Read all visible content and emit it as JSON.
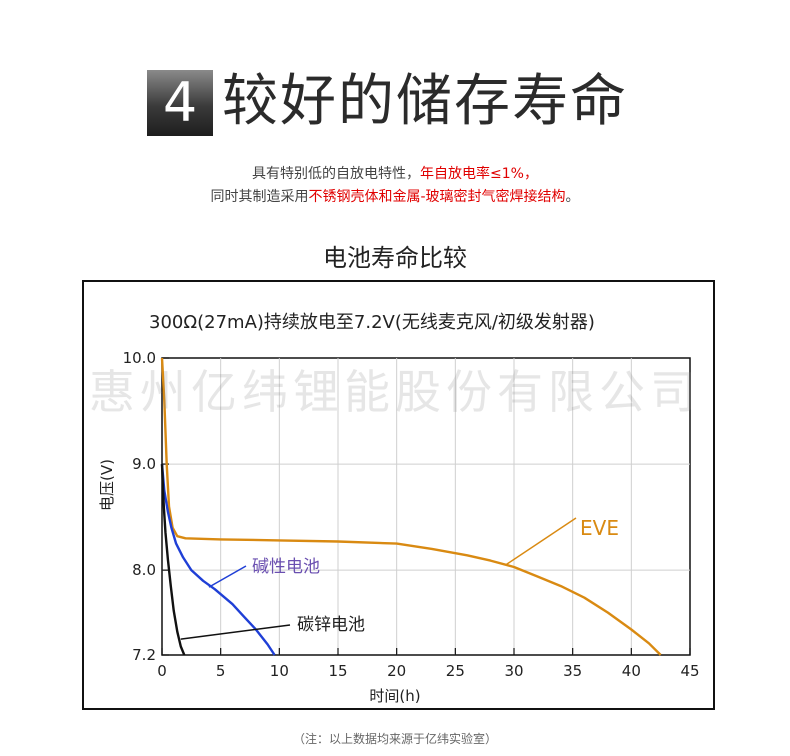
{
  "header": {
    "number": "4",
    "title": "较好的储存寿命"
  },
  "intro": {
    "line1_text": "具有特别低的自放电特性，",
    "line1_highlight": "年自放电率≤1%",
    "line1_end": "，",
    "line2_text": "同时其制造采用",
    "line2_highlight": "不锈钢壳体和金属-玻璃密封气密焊接结构",
    "line2_end": "。"
  },
  "chart_title": "电池寿命比较",
  "watermark": "惠州亿纬锂能股份有限公司",
  "footnote": "（注：以上数据均来源于亿纬实验室）",
  "colors": {
    "eve": "#d98a12",
    "alkaline": "#1f3fd6",
    "carbon_zinc": "#111111",
    "alkaline_label": "#6a4fb0",
    "grid": "#cfcfcf"
  },
  "chart_data": {
    "type": "line",
    "subtitle": "300Ω(27mA)持续放电至7.2V(无线麦克风/初级发射器)",
    "xlabel": "时间(h)",
    "ylabel": "电压(V)",
    "xlim": [
      0,
      45
    ],
    "ylim": [
      7.2,
      10.0
    ],
    "x_ticks": [
      0,
      5,
      10,
      15,
      20,
      25,
      30,
      35,
      40,
      45
    ],
    "y_ticks": [
      7.2,
      8.0,
      9.0,
      10.0
    ],
    "y_tick_labels": [
      "7.2",
      "8.0",
      "9.0",
      "10.0"
    ],
    "grid": true,
    "series": [
      {
        "name": "EVE",
        "points": [
          [
            0,
            10.0
          ],
          [
            0.2,
            9.6
          ],
          [
            0.4,
            9.0
          ],
          [
            0.6,
            8.6
          ],
          [
            0.9,
            8.4
          ],
          [
            1.3,
            8.32
          ],
          [
            2,
            8.3
          ],
          [
            5,
            8.29
          ],
          [
            10,
            8.28
          ],
          [
            15,
            8.27
          ],
          [
            20,
            8.25
          ],
          [
            23,
            8.2
          ],
          [
            26,
            8.14
          ],
          [
            28,
            8.09
          ],
          [
            30,
            8.03
          ],
          [
            32,
            7.94
          ],
          [
            34,
            7.85
          ],
          [
            36,
            7.74
          ],
          [
            38,
            7.6
          ],
          [
            40,
            7.44
          ],
          [
            41.5,
            7.31
          ],
          [
            42.5,
            7.2
          ]
        ]
      },
      {
        "name": "碱性电池",
        "points": [
          [
            0,
            9.0
          ],
          [
            0.2,
            8.75
          ],
          [
            0.5,
            8.55
          ],
          [
            0.8,
            8.4
          ],
          [
            1.2,
            8.25
          ],
          [
            1.8,
            8.12
          ],
          [
            2.5,
            8.0
          ],
          [
            3.5,
            7.9
          ],
          [
            4.5,
            7.82
          ],
          [
            6,
            7.68
          ],
          [
            7,
            7.56
          ],
          [
            8,
            7.44
          ],
          [
            9,
            7.3
          ],
          [
            9.6,
            7.2
          ]
        ]
      },
      {
        "name": "碳锌电池",
        "points": [
          [
            0,
            9.0
          ],
          [
            0.15,
            8.6
          ],
          [
            0.3,
            8.35
          ],
          [
            0.5,
            8.1
          ],
          [
            0.75,
            7.85
          ],
          [
            1.0,
            7.62
          ],
          [
            1.3,
            7.42
          ],
          [
            1.6,
            7.28
          ],
          [
            1.9,
            7.2
          ]
        ]
      }
    ]
  }
}
